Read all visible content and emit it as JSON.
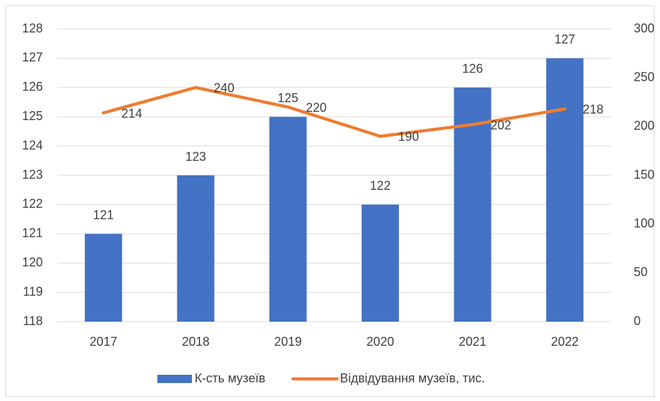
{
  "chart_data": {
    "type": "bar",
    "categories": [
      "2017",
      "2018",
      "2019",
      "2020",
      "2021",
      "2022"
    ],
    "series": [
      {
        "name": "К-сть музеїв",
        "color": "#4472c4",
        "values": [
          121,
          123,
          125,
          122,
          126,
          127
        ]
      },
      {
        "name": "Відвідування музеїв, тис.",
        "color": "#ed7d31",
        "type": "line",
        "axis": "y2",
        "values": [
          214,
          240,
          220,
          190,
          202,
          218
        ]
      }
    ],
    "ylim": [
      118,
      128
    ],
    "yticks": [
      118,
      119,
      120,
      121,
      122,
      123,
      124,
      125,
      126,
      127,
      128
    ],
    "y2lim": [
      0,
      300
    ],
    "y2ticks": [
      0,
      50,
      100,
      150,
      200,
      250,
      300
    ],
    "grid": true,
    "legend": "bottom"
  }
}
